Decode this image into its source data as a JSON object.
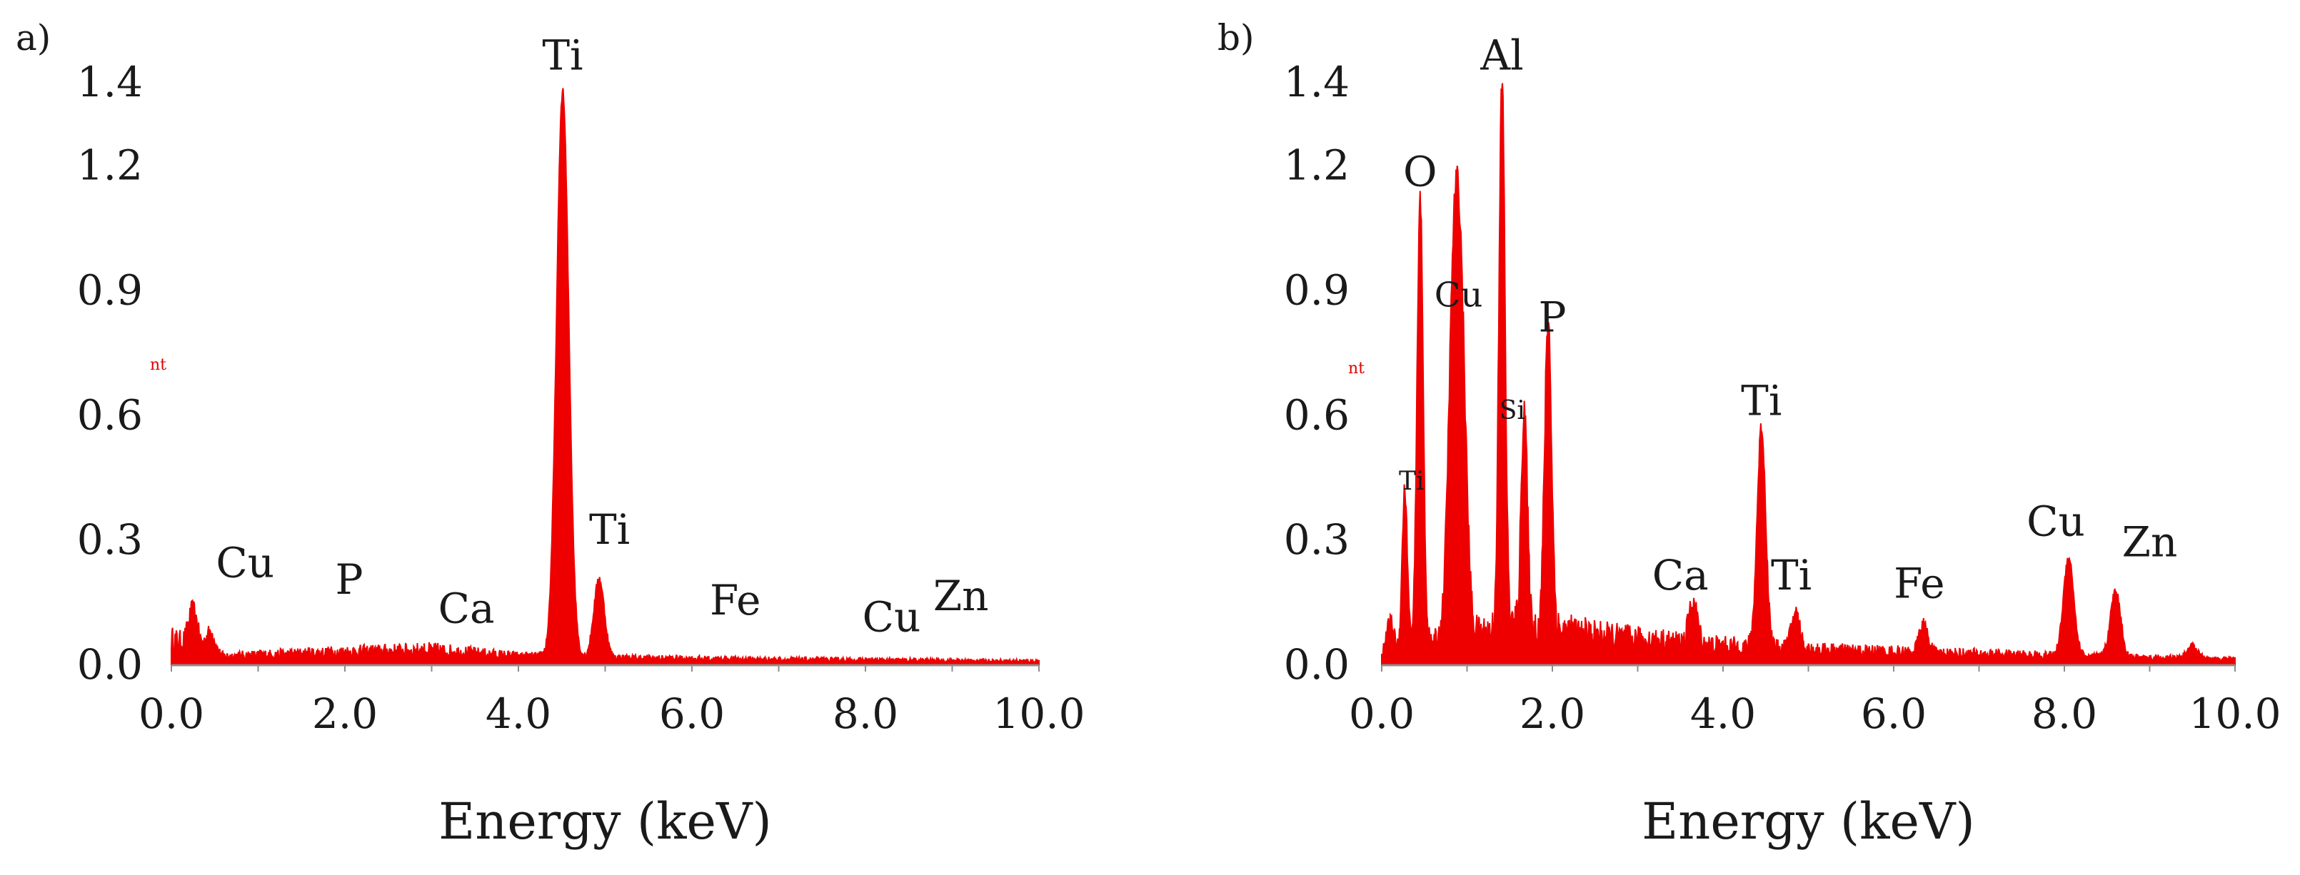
{
  "chart_data": [
    {
      "type": "area",
      "panel_label": "a)",
      "xlabel": "Energy (keV)",
      "ylabel": "",
      "xlim": [
        0,
        10
      ],
      "ylim": [
        0,
        1.4
      ],
      "x_ticks": [
        "0.0",
        "2.0",
        "4.0",
        "6.0",
        "8.0",
        "10.0"
      ],
      "y_ticks": [
        "0.0",
        "0.3",
        "0.6",
        "0.9",
        "1.2",
        "1.4"
      ],
      "y_tick_values": [
        0,
        0.3,
        0.6,
        0.9,
        1.2,
        1.4
      ],
      "baseline": [
        [
          0.0,
          0.06
        ],
        [
          0.6,
          0.02
        ],
        [
          2.0,
          0.03
        ],
        [
          3.0,
          0.035
        ],
        [
          4.0,
          0.02
        ],
        [
          5.5,
          0.015
        ],
        [
          7.0,
          0.012
        ],
        [
          10.0,
          0.008
        ]
      ],
      "peaks": [
        {
          "x": 0.25,
          "y": 0.09,
          "w": 0.05
        },
        {
          "x": 0.45,
          "y": 0.05,
          "w": 0.05
        },
        {
          "x": 4.51,
          "y": 1.36,
          "w": 0.07
        },
        {
          "x": 4.93,
          "y": 0.19,
          "w": 0.06
        }
      ],
      "annotations": [
        {
          "text": "Ti",
          "x": 4.51,
          "y": 1.43,
          "size": "lg"
        },
        {
          "text": "Ti",
          "x": 5.05,
          "y": 0.29,
          "size": "lg"
        },
        {
          "text": "Cu",
          "x": 0.85,
          "y": 0.21,
          "size": "lg"
        },
        {
          "text": "P",
          "x": 2.05,
          "y": 0.17,
          "size": "lg"
        },
        {
          "text": "Ca",
          "x": 3.4,
          "y": 0.1,
          "size": "lg"
        },
        {
          "text": "Fe",
          "x": 6.5,
          "y": 0.12,
          "size": "lg"
        },
        {
          "text": "Cu",
          "x": 8.3,
          "y": 0.08,
          "size": "lg"
        },
        {
          "text": "Zn",
          "x": 9.1,
          "y": 0.13,
          "size": "lg"
        }
      ],
      "stray_text": "nt"
    },
    {
      "type": "area",
      "panel_label": "b)",
      "xlabel": "Energy (keV)",
      "ylabel": "",
      "xlim": [
        0,
        10
      ],
      "ylim": [
        0,
        1.4
      ],
      "x_ticks": [
        "0.0",
        "2.0",
        "4.0",
        "6.0",
        "8.0",
        "10.0"
      ],
      "y_ticks": [
        "0.0",
        "0.3",
        "0.6",
        "0.9",
        "1.2",
        "1.4"
      ],
      "y_tick_values": [
        0,
        0.3,
        0.6,
        0.9,
        1.2,
        1.4
      ],
      "baseline": [
        [
          0.0,
          0.03
        ],
        [
          0.5,
          0.05
        ],
        [
          1.0,
          0.07
        ],
        [
          1.5,
          0.09
        ],
        [
          2.0,
          0.085
        ],
        [
          2.5,
          0.07
        ],
        [
          3.0,
          0.06
        ],
        [
          4.0,
          0.045
        ],
        [
          5.0,
          0.035
        ],
        [
          6.0,
          0.03
        ],
        [
          7.0,
          0.025
        ],
        [
          8.0,
          0.02
        ],
        [
          10.0,
          0.012
        ]
      ],
      "peaks": [
        {
          "x": 0.1,
          "y": 0.07,
          "w": 0.04
        },
        {
          "x": 0.27,
          "y": 0.38,
          "w": 0.03
        },
        {
          "x": 0.45,
          "y": 1.08,
          "w": 0.035
        },
        {
          "x": 0.84,
          "y": 0.76,
          "w": 0.06
        },
        {
          "x": 0.93,
          "y": 0.7,
          "w": 0.06
        },
        {
          "x": 1.41,
          "y": 1.32,
          "w": 0.035
        },
        {
          "x": 1.67,
          "y": 0.54,
          "w": 0.035
        },
        {
          "x": 1.95,
          "y": 0.75,
          "w": 0.04
        },
        {
          "x": 3.65,
          "y": 0.1,
          "w": 0.05
        },
        {
          "x": 4.45,
          "y": 0.53,
          "w": 0.05
        },
        {
          "x": 4.85,
          "y": 0.09,
          "w": 0.05
        },
        {
          "x": 6.35,
          "y": 0.07,
          "w": 0.05
        },
        {
          "x": 8.05,
          "y": 0.24,
          "w": 0.06
        },
        {
          "x": 8.6,
          "y": 0.16,
          "w": 0.06
        },
        {
          "x": 9.5,
          "y": 0.03,
          "w": 0.06
        }
      ],
      "annotations": [
        {
          "text": "Al",
          "x": 1.41,
          "y": 1.43,
          "size": "lg"
        },
        {
          "text": "O",
          "x": 0.45,
          "y": 1.15,
          "size": "lg"
        },
        {
          "text": "Cu",
          "x": 0.9,
          "y": 0.86,
          "size": "lg-m"
        },
        {
          "text": "P",
          "x": 2.0,
          "y": 0.8,
          "size": "lg"
        },
        {
          "text": "Si",
          "x": 1.53,
          "y": 0.59,
          "size": "sm"
        },
        {
          "text": "Ti",
          "x": 0.35,
          "y": 0.42,
          "size": "sm"
        },
        {
          "text": "Ti",
          "x": 4.45,
          "y": 0.6,
          "size": "lg"
        },
        {
          "text": "Ca",
          "x": 3.5,
          "y": 0.18,
          "size": "lg"
        },
        {
          "text": "Ti",
          "x": 4.8,
          "y": 0.18,
          "size": "lg"
        },
        {
          "text": "Fe",
          "x": 6.3,
          "y": 0.16,
          "size": "lg"
        },
        {
          "text": "Cu",
          "x": 7.9,
          "y": 0.31,
          "size": "lg"
        },
        {
          "text": "Zn",
          "x": 9.0,
          "y": 0.26,
          "size": "lg"
        }
      ],
      "stray_text": "nt"
    }
  ]
}
